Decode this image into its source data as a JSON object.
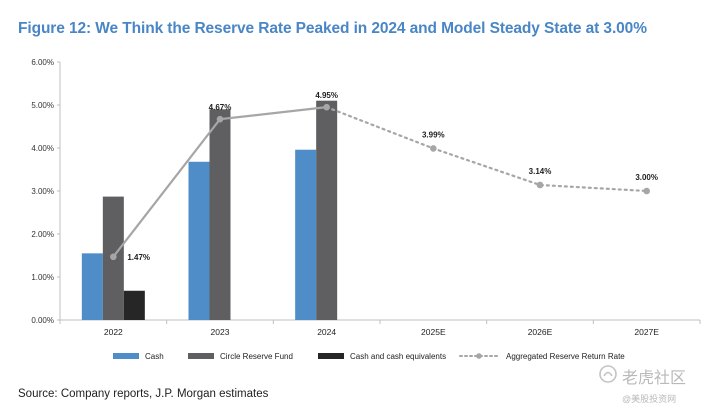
{
  "figure": {
    "title": "Figure 12: We Think the Reserve Rate Peaked in 2024 and Model Steady State at 3.00%",
    "source": "Source: Company reports, J.P. Morgan estimates",
    "watermark": "老虎社区",
    "watermark_sub": "@美股投资网"
  },
  "chart_data": {
    "type": "bar",
    "title": "",
    "xlabel": "",
    "ylabel": "",
    "ylim": [
      0,
      6
    ],
    "yticks": [
      0,
      1,
      2,
      3,
      4,
      5,
      6
    ],
    "ytick_labels": [
      "0.00%",
      "1.00%",
      "2.00%",
      "3.00%",
      "4.00%",
      "5.00%",
      "6.00%"
    ],
    "categories": [
      "2022",
      "2023",
      "2024",
      "2025E",
      "2026E",
      "2027E"
    ],
    "series": [
      {
        "name": "Cash",
        "kind": "bar",
        "color": "#4f8dc8",
        "values": [
          1.55,
          3.68,
          3.96,
          null,
          null,
          null
        ]
      },
      {
        "name": "Circle Reserve Fund",
        "kind": "bar",
        "color": "#5f5f61",
        "values": [
          2.87,
          4.9,
          5.1,
          null,
          null,
          null
        ]
      },
      {
        "name": "Cash and cash equivalents",
        "kind": "bar",
        "color": "#262626",
        "values": [
          0.68,
          null,
          null,
          null,
          null,
          null
        ]
      },
      {
        "name": "Aggregated Reserve Return Rate",
        "kind": "line",
        "color": "#a6a6a6",
        "values": [
          1.47,
          4.67,
          4.95,
          3.99,
          3.14,
          3.0
        ],
        "labels": [
          "1.47%",
          "4.67%",
          "4.95%",
          "3.99%",
          "3.14%",
          "3.00%"
        ],
        "style_note": "solid through 2024, dotted for estimates"
      }
    ],
    "grid": false,
    "legend_position": "bottom"
  }
}
